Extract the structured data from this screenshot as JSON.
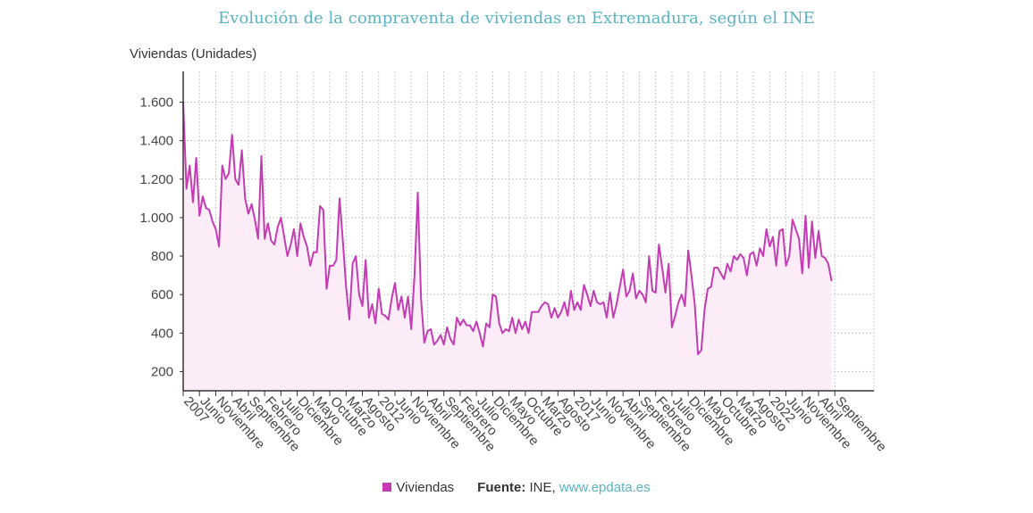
{
  "chart_data": {
    "type": "area",
    "title": "Evolución de la compraventa de viviendas en Extremadura, según el INE",
    "ylabel": "Viviendas (Unidades)",
    "ylim": [
      100,
      1760
    ],
    "y_ticks": [
      200,
      400,
      600,
      800,
      1000,
      1200,
      1400,
      1600
    ],
    "y_tick_labels": [
      "200",
      "400",
      "600",
      "800",
      "1.000",
      "1.200",
      "1.400",
      "1.600"
    ],
    "grid": true,
    "x_start": "2007-01",
    "x_end": "2024-09",
    "x_ticks": [
      {
        "month": "2007-01",
        "label": "2007"
      },
      {
        "month": "2007-06",
        "label": "Junio"
      },
      {
        "month": "2007-11",
        "label": "Noviembre"
      },
      {
        "month": "2008-04",
        "label": "Abril"
      },
      {
        "month": "2008-09",
        "label": "Septiembre"
      },
      {
        "month": "2009-02",
        "label": "Febrero"
      },
      {
        "month": "2009-07",
        "label": "Julio"
      },
      {
        "month": "2009-12",
        "label": "Diciembre"
      },
      {
        "month": "2010-05",
        "label": "Mayo"
      },
      {
        "month": "2010-10",
        "label": "Octubre"
      },
      {
        "month": "2011-03",
        "label": "Marzo"
      },
      {
        "month": "2011-08",
        "label": "Agosto"
      },
      {
        "month": "2012-01",
        "label": "2012"
      },
      {
        "month": "2012-06",
        "label": "Junio"
      },
      {
        "month": "2012-11",
        "label": "Noviembre"
      },
      {
        "month": "2013-04",
        "label": "Abril"
      },
      {
        "month": "2013-09",
        "label": "Septiembre"
      },
      {
        "month": "2014-02",
        "label": "Febrero"
      },
      {
        "month": "2014-07",
        "label": "Julio"
      },
      {
        "month": "2014-12",
        "label": "Diciembre"
      },
      {
        "month": "2015-05",
        "label": "Mayo"
      },
      {
        "month": "2015-10",
        "label": "Octubre"
      },
      {
        "month": "2016-03",
        "label": "Marzo"
      },
      {
        "month": "2016-08",
        "label": "Agosto"
      },
      {
        "month": "2017-01",
        "label": "2017"
      },
      {
        "month": "2017-06",
        "label": "Junio"
      },
      {
        "month": "2017-11",
        "label": "Noviembre"
      },
      {
        "month": "2018-04",
        "label": "Abril"
      },
      {
        "month": "2018-09",
        "label": "Septiembre"
      },
      {
        "month": "2019-02",
        "label": "Febrero"
      },
      {
        "month": "2019-07",
        "label": "Julio"
      },
      {
        "month": "2019-12",
        "label": "Diciembre"
      },
      {
        "month": "2020-05",
        "label": "Mayo"
      },
      {
        "month": "2020-10",
        "label": "Octubre"
      },
      {
        "month": "2021-03",
        "label": "Marzo"
      },
      {
        "month": "2021-08",
        "label": "Agosto"
      },
      {
        "month": "2022-01",
        "label": "2022"
      },
      {
        "month": "2022-06",
        "label": "Junio"
      },
      {
        "month": "2022-11",
        "label": "Noviembre"
      },
      {
        "month": "2023-04",
        "label": "Abril"
      },
      {
        "month": "2023-09",
        "label": "Septiembre"
      }
    ],
    "series": [
      {
        "name": "Viviendas",
        "color": "#c43cb4",
        "fill_color": "#fcecf8",
        "values": [
          1600,
          1150,
          1270,
          1080,
          1310,
          1010,
          1110,
          1050,
          1040,
          980,
          940,
          850,
          1270,
          1200,
          1230,
          1430,
          1200,
          1170,
          1350,
          1100,
          1020,
          1070,
          990,
          890,
          1320,
          890,
          970,
          880,
          860,
          950,
          1000,
          900,
          800,
          860,
          940,
          800,
          970,
          900,
          850,
          750,
          820,
          820,
          1060,
          1040,
          630,
          750,
          750,
          780,
          1100,
          880,
          640,
          470,
          760,
          800,
          600,
          540,
          780,
          480,
          550,
          450,
          630,
          500,
          490,
          470,
          580,
          660,
          520,
          590,
          480,
          590,
          420,
          700,
          1130,
          580,
          350,
          410,
          420,
          340,
          360,
          390,
          340,
          430,
          370,
          340,
          480,
          440,
          470,
          440,
          440,
          410,
          460,
          400,
          330,
          450,
          430,
          600,
          590,
          450,
          400,
          420,
          410,
          480,
          400,
          470,
          420,
          460,
          400,
          510,
          510,
          510,
          540,
          560,
          550,
          480,
          530,
          480,
          510,
          560,
          490,
          620,
          520,
          560,
          520,
          650,
          600,
          540,
          620,
          560,
          550,
          560,
          480,
          610,
          480,
          550,
          640,
          730,
          590,
          620,
          710,
          580,
          620,
          600,
          560,
          800,
          620,
          610,
          860,
          740,
          610,
          760,
          430,
          490,
          560,
          600,
          540,
          830,
          700,
          550,
          290,
          310,
          520,
          630,
          640,
          740,
          740,
          710,
          680,
          760,
          720,
          800,
          780,
          810,
          790,
          700,
          810,
          820,
          750,
          840,
          800,
          940,
          850,
          900,
          750,
          930,
          940,
          750,
          800,
          990,
          940,
          890,
          710,
          1010,
          740,
          980,
          790,
          930,
          800,
          790,
          760,
          670
        ]
      }
    ]
  },
  "legend": {
    "swatch_color": "#c43cb4",
    "label": "Viviendas"
  },
  "source": {
    "label": "Fuente:",
    "text": "INE,",
    "link": "www.epdata.es"
  }
}
